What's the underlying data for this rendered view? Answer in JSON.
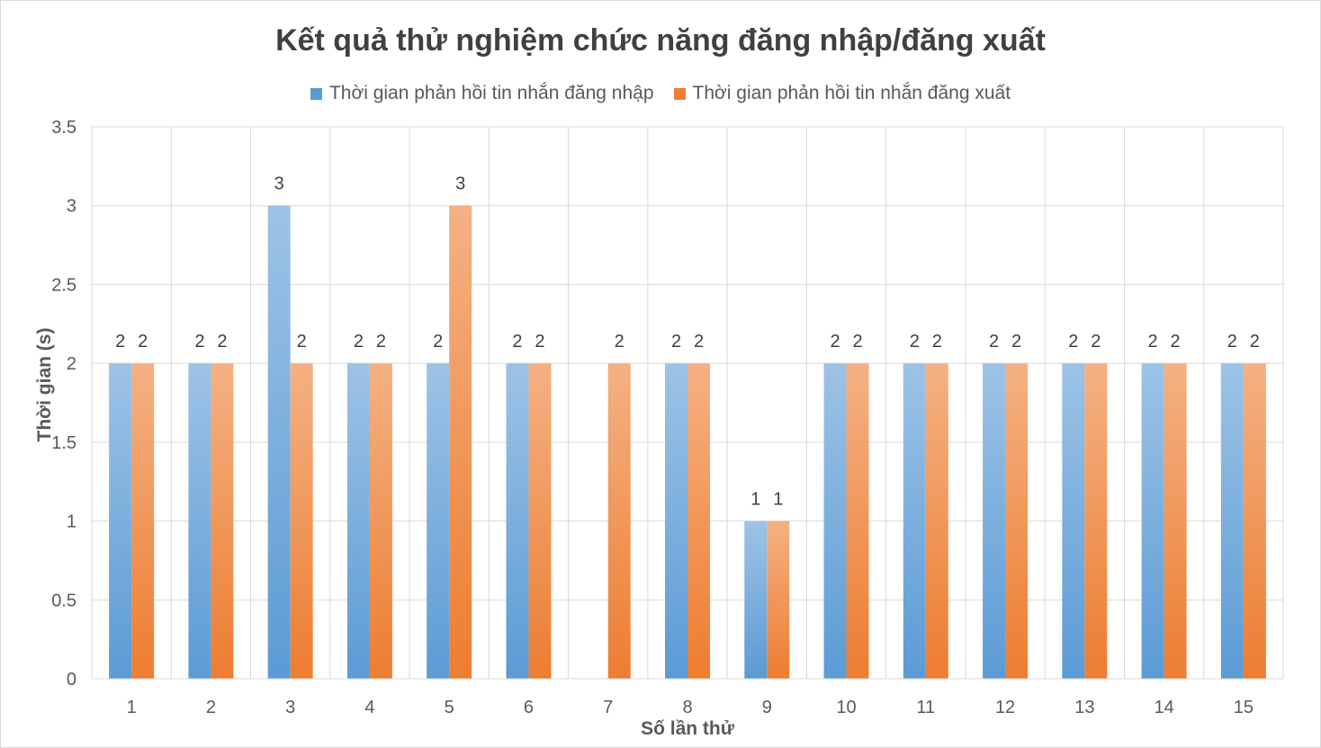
{
  "chart_data": {
    "type": "bar",
    "title": "Kết quả thử nghiệm chức năng đăng nhập/đăng xuất",
    "xlabel": "Số lần thử",
    "ylabel": "Thời gian (s)",
    "ylim": [
      0,
      3.5
    ],
    "yticks": [
      "0",
      "0.5",
      "1",
      "1.5",
      "2",
      "2.5",
      "3",
      "3.5"
    ],
    "categories": [
      "1",
      "2",
      "3",
      "4",
      "5",
      "6",
      "7",
      "8",
      "9",
      "10",
      "11",
      "12",
      "13",
      "14",
      "15"
    ],
    "series": [
      {
        "name": "Thời gian phản hồi tin nhắn đăng nhập",
        "color": "#5B9BD5",
        "values": [
          2,
          2,
          3,
          2,
          2,
          2,
          null,
          2,
          1,
          2,
          2,
          2,
          2,
          2,
          2
        ]
      },
      {
        "name": "Thời gian phản hồi tin nhắn đăng xuất",
        "color": "#ED7D31",
        "values": [
          2,
          2,
          2,
          2,
          3,
          2,
          2,
          2,
          1,
          2,
          2,
          2,
          2,
          2,
          2
        ]
      }
    ],
    "grid": true,
    "legend_position": "top",
    "data_labels": true
  }
}
